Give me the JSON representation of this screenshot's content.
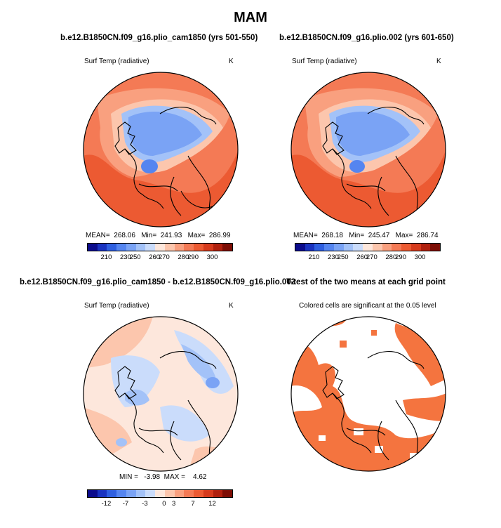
{
  "figure_title": "MAM",
  "panels": {
    "p1": {
      "title": "b.e12.B1850CN.f09_g16.plio_cam1850 (yrs 501-550)",
      "var": "Surf Temp (radiative)",
      "units": "K",
      "stats": "MEAN=  268.06   Min=  241.93   Max=  286.99"
    },
    "p2": {
      "title": "b.e12.B1850CN.f09_g16.plio.002 (yrs 601-650)",
      "var": "Surf Temp (radiative)",
      "units": "K",
      "stats": "MEAN=  268.18   Min=  245.47   Max=  286.74"
    },
    "p3": {
      "title": "b.e12.B1850CN.f09_g16.plio_cam1850 - b.e12.B1850CN.f09_g16.plio.002",
      "var": "Surf Temp (radiative)",
      "units": "K",
      "stats": "MIN =   -3.98  MAX =    4.62"
    },
    "p4": {
      "title": "T-test of the two means at each grid point",
      "var": "Colored cells are significant at the 0.05 level"
    }
  },
  "colorbar_abs": {
    "colors": [
      "#0c0c8c",
      "#1a33c0",
      "#2f5fe0",
      "#5585f0",
      "#7aa3f5",
      "#a3c2f8",
      "#cadcfb",
      "#fde7dc",
      "#fcc6ad",
      "#f9a07f",
      "#f47a55",
      "#ec5a32",
      "#d63a1c",
      "#b0200e",
      "#7d0d05"
    ],
    "ticks": [
      "210",
      "230",
      "250",
      "260",
      "270",
      "280",
      "290",
      "300"
    ]
  },
  "colorbar_diff": {
    "colors": [
      "#0c0c8c",
      "#1a33c0",
      "#2f5fe0",
      "#5585f0",
      "#7aa3f5",
      "#a3c2f8",
      "#cadcfb",
      "#fde7dc",
      "#fcc6ad",
      "#f9a07f",
      "#f47a55",
      "#ec5a32",
      "#d63a1c",
      "#b0200e",
      "#7d0d05"
    ],
    "ticks": [
      "-12",
      "-7",
      "-3",
      "0",
      "3",
      "7",
      "12"
    ]
  }
}
